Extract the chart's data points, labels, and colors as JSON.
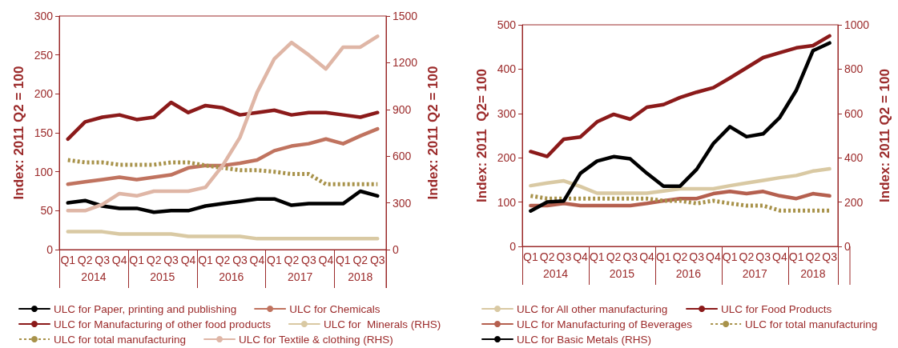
{
  "chart_data": [
    {
      "type": "line",
      "ylabel": "Index: 2011 Q2 = 100",
      "y2label": "Index: 2011 Q2 = 100",
      "categories": [
        "Q1",
        "Q2",
        "Q3",
        "Q4",
        "Q1",
        "Q2",
        "Q3",
        "Q4",
        "Q1",
        "Q2",
        "Q3",
        "Q4",
        "Q1",
        "Q2",
        "Q3",
        "Q4",
        "Q1",
        "Q2",
        "Q3"
      ],
      "annotations": [
        "2014",
        "2015",
        "2016",
        "2017",
        "2018"
      ],
      "ylim": [
        0,
        300
      ],
      "yticks": [
        0,
        50,
        100,
        150,
        200,
        250,
        300
      ],
      "y2lim": [
        0,
        1500
      ],
      "y2ticks": [
        0,
        300,
        600,
        900,
        1200,
        1500
      ],
      "grid": false,
      "legend": "bottom",
      "marker": "none",
      "series": [
        {
          "name": "ULC for Paper, printing and publishing",
          "color": "#000000",
          "values": [
            60,
            63,
            56,
            53,
            53,
            48,
            50,
            50,
            56,
            59,
            62,
            65,
            65,
            57,
            59,
            59,
            59,
            75,
            69
          ]
        },
        {
          "name": "ULC for Chemicals",
          "color": "#c0735f",
          "values": [
            84,
            87,
            90,
            93,
            90,
            93,
            96,
            105,
            108,
            108,
            111,
            115,
            127,
            133,
            136,
            142,
            136,
            146,
            155
          ]
        },
        {
          "name": "ULC for Manufacturing of other food products",
          "color": "#8b1a1a",
          "values": [
            142,
            164,
            170,
            173,
            167,
            170,
            189,
            176,
            185,
            182,
            173,
            176,
            179,
            173,
            176,
            176,
            173,
            170,
            176
          ]
        },
        {
          "name": "ULC for  Minerals (RHS)",
          "color": "#d9c9a3",
          "axis": "y2",
          "values": [
            115,
            115,
            115,
            100,
            100,
            100,
            100,
            85,
            85,
            85,
            85,
            70,
            70,
            70,
            70,
            70,
            70,
            70,
            70
          ]
        },
        {
          "name": "ULC for total manufacturing",
          "color": "#a8924a",
          "line_style": "dotted",
          "values": [
            115,
            112,
            112,
            109,
            109,
            109,
            112,
            112,
            108,
            105,
            102,
            102,
            100,
            97,
            97,
            84,
            84,
            84,
            84
          ]
        },
        {
          "name": "ULC for Textile & clothing (RHS)",
          "color": "#dfb6a6",
          "axis": "y2",
          "values": [
            250,
            250,
            290,
            360,
            345,
            375,
            375,
            375,
            400,
            540,
            720,
            1010,
            1225,
            1330,
            1250,
            1160,
            1300,
            1300,
            1370
          ]
        }
      ]
    },
    {
      "type": "line",
      "ylabel": "Index: 2011  Q2= 100",
      "y2label": "Index: 2011 Q2 = 100",
      "categories": [
        "Q1",
        "Q2",
        "Q3",
        "Q4",
        "Q1",
        "Q2",
        "Q3",
        "Q4",
        "Q1",
        "Q2",
        "Q3",
        "Q4",
        "Q1",
        "Q2",
        "Q3",
        "Q4",
        "Q1",
        "Q2",
        "Q3"
      ],
      "annotations": [
        "2014",
        "2015",
        "2016",
        "2017",
        "2018"
      ],
      "ylim": [
        0,
        500
      ],
      "yticks": [
        0,
        100,
        200,
        300,
        400,
        500
      ],
      "y2lim": [
        0,
        1000
      ],
      "y2ticks": [
        0,
        200,
        400,
        600,
        800,
        1000
      ],
      "grid": false,
      "legend": "bottom",
      "marker": "none",
      "series": [
        {
          "name": "ULC for All other manufacturing",
          "color": "#d9c9a3",
          "values": [
            137,
            143,
            148,
            135,
            120,
            120,
            120,
            120,
            125,
            130,
            130,
            130,
            137,
            143,
            149,
            155,
            160,
            170,
            175
          ]
        },
        {
          "name": "ULC for Food Products",
          "color": "#8b1a1a",
          "values": [
            214,
            203,
            242,
            247,
            281,
            298,
            287,
            314,
            320,
            336,
            348,
            358,
            380,
            403,
            426,
            437,
            448,
            453,
            475
          ]
        },
        {
          "name": "ULC for Manufacturing of Beverages",
          "color": "#b5604f",
          "values": [
            92,
            92,
            97,
            92,
            92,
            92,
            92,
            97,
            103,
            108,
            108,
            119,
            124,
            119,
            124,
            114,
            108,
            119,
            114
          ]
        },
        {
          "name": "ULC for total manufacturing",
          "color": "#a8924a",
          "line_style": "dotted",
          "values": [
            114,
            108,
            108,
            108,
            108,
            108,
            108,
            108,
            103,
            103,
            97,
            103,
            97,
            92,
            92,
            81,
            81,
            81,
            81
          ]
        },
        {
          "name": "ULC for Basic Metals (RHS)",
          "color": "#000000",
          "axis": "y2",
          "values": [
            160,
            200,
            205,
            330,
            385,
            405,
            395,
            330,
            272,
            272,
            348,
            464,
            540,
            495,
            508,
            582,
            705,
            883,
            918
          ]
        }
      ]
    }
  ]
}
